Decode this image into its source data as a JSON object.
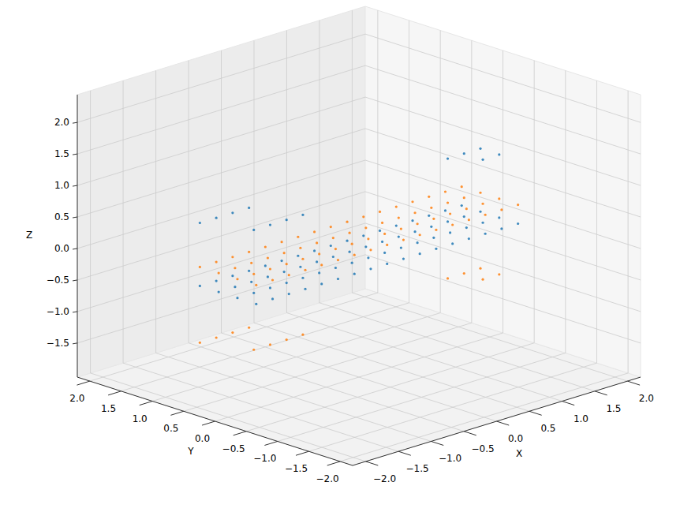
{
  "chart_data": {
    "type": "scatter3d",
    "x_label": "X",
    "y_label": "Y",
    "z_label": "Z",
    "xlim": [
      -2.2,
      2.2
    ],
    "ylim": [
      -2.2,
      2.2
    ],
    "zlim": [
      -2.04,
      2.44
    ],
    "xticks": [
      {
        "value": -2,
        "label": "−2.0"
      },
      {
        "value": -1.5,
        "label": "−1.5"
      },
      {
        "value": -1,
        "label": "−1.0"
      },
      {
        "value": -0.5,
        "label": "−0.5"
      },
      {
        "value": 0,
        "label": "0.0"
      },
      {
        "value": 0.5,
        "label": "0.5"
      },
      {
        "value": 1,
        "label": "1.0"
      },
      {
        "value": 1.5,
        "label": "1.5"
      },
      {
        "value": 2,
        "label": "2.0"
      }
    ],
    "yticks": [
      {
        "value": -2,
        "label": "−2.0"
      },
      {
        "value": -1.5,
        "label": "−1.5"
      },
      {
        "value": -1,
        "label": "−1.0"
      },
      {
        "value": -0.5,
        "label": "−0.5"
      },
      {
        "value": 0,
        "label": "0.0"
      },
      {
        "value": 0.5,
        "label": "0.5"
      },
      {
        "value": 1,
        "label": "1.0"
      },
      {
        "value": 1.5,
        "label": "1.5"
      },
      {
        "value": 2,
        "label": "2.0"
      }
    ],
    "zticks": [
      {
        "value": -1.5,
        "label": "−1.5"
      },
      {
        "value": -1,
        "label": "−1.0"
      },
      {
        "value": -0.5,
        "label": "−0.5"
      },
      {
        "value": 0,
        "label": "0.0"
      },
      {
        "value": 0.5,
        "label": "0.5"
      },
      {
        "value": 1,
        "label": "1.0"
      },
      {
        "value": 1.5,
        "label": "1.5"
      },
      {
        "value": 2,
        "label": "2.0"
      }
    ],
    "grid": true,
    "series": [
      {
        "color": "#1f77b4",
        "x": [
          -2,
          -1.75,
          -1.5,
          -1.25,
          -1,
          -0.75,
          -0.5,
          -0.25,
          0,
          0.25,
          0.5,
          0.75,
          1,
          1.25,
          1.5,
          1.75,
          2,
          -2,
          -1.75,
          -1.5,
          -1.25,
          -1,
          -0.75,
          -0.5,
          -0.25,
          0,
          0.25,
          0.5,
          0.75,
          1,
          1.25,
          1.5,
          1.75,
          2,
          -2,
          -1.75,
          -1.5,
          -1.25,
          -1,
          -0.75,
          -0.5,
          -0.25,
          0,
          0.25,
          0.5,
          0.75,
          1,
          1.25,
          1.5,
          1.75,
          2,
          -2,
          -1.75,
          -1.5,
          -1.25,
          -1,
          -0.75,
          -0.5,
          -0.25,
          0,
          0.25,
          0.5,
          0.75,
          1,
          1.25,
          1.5,
          1.75,
          2,
          -2,
          -1.75,
          -1.5,
          -1.25,
          -1.75,
          -1.5,
          -1.25,
          -1,
          1.5,
          1.75,
          2,
          1.75,
          2
        ],
        "y": [
          -0.45,
          -0.45,
          -0.45,
          -0.45,
          -0.45,
          -0.45,
          -0.45,
          -0.45,
          -0.45,
          -0.45,
          -0.45,
          -0.45,
          -0.45,
          -0.45,
          -0.45,
          -0.45,
          -0.45,
          -0.15,
          -0.15,
          -0.15,
          -0.15,
          -0.15,
          -0.15,
          -0.15,
          -0.15,
          -0.15,
          -0.15,
          -0.15,
          -0.15,
          -0.15,
          -0.15,
          -0.15,
          -0.15,
          -0.15,
          0.15,
          0.15,
          0.15,
          0.15,
          0.15,
          0.15,
          0.15,
          0.15,
          0.15,
          0.15,
          0.15,
          0.15,
          0.15,
          0.15,
          0.15,
          0.15,
          0.15,
          0.45,
          0.45,
          0.45,
          0.45,
          0.45,
          0.45,
          0.45,
          0.45,
          0.45,
          0.45,
          0.45,
          0.45,
          0.45,
          0.45,
          0.45,
          0.45,
          0.45,
          0.45,
          0.45,
          0.45,
          0.45,
          -0.15,
          -0.15,
          -0.15,
          -0.15,
          0.15,
          0.15,
          0.15,
          -0.15,
          -0.15
        ],
        "z": [
          -0.1,
          -0.1,
          -0.1,
          -0.1,
          -0.1,
          -0.1,
          -0.1,
          -0.1,
          -0.1,
          -0.1,
          -0.1,
          -0.1,
          -0.1,
          -0.1,
          -0.1,
          -0.1,
          -0.1,
          -0.1,
          -0.1,
          -0.1,
          -0.1,
          -0.1,
          -0.1,
          -0.1,
          -0.1,
          -0.1,
          -0.1,
          -0.1,
          -0.1,
          -0.1,
          -0.1,
          -0.1,
          -0.1,
          -0.1,
          -0.1,
          -0.1,
          -0.1,
          -0.1,
          -0.1,
          -0.1,
          -0.1,
          -0.1,
          -0.1,
          -0.1,
          -0.1,
          -0.1,
          -0.1,
          -0.1,
          -0.1,
          -0.1,
          -0.1,
          -0.1,
          -0.1,
          -0.1,
          -0.1,
          -0.1,
          -0.1,
          -0.1,
          -0.1,
          -0.1,
          -0.1,
          -0.1,
          -0.1,
          -0.1,
          -0.1,
          -0.1,
          -0.1,
          -0.1,
          0.9,
          0.9,
          0.9,
          0.9,
          0.9,
          0.9,
          0.9,
          0.9,
          0.9,
          0.9,
          0.9,
          0.9,
          0.9
        ]
      },
      {
        "color": "#ff7f0e",
        "x": [
          -2,
          -1.75,
          -1.5,
          -1.25,
          -1,
          -0.75,
          -0.5,
          -0.25,
          0,
          0.25,
          0.5,
          0.75,
          1,
          1.25,
          1.5,
          1.75,
          2,
          -2,
          -1.75,
          -1.5,
          -1.25,
          -1,
          -0.75,
          -0.5,
          -0.25,
          0,
          0.25,
          0.5,
          0.75,
          1,
          1.25,
          1.5,
          1.75,
          2,
          -2,
          -1.75,
          -1.5,
          -1.25,
          -1,
          -0.75,
          -0.5,
          -0.25,
          0,
          0.25,
          0.5,
          0.75,
          1,
          1.25,
          1.5,
          1.75,
          2,
          -2,
          -1.75,
          -1.5,
          -1.25,
          -1,
          -0.75,
          -0.5,
          -0.25,
          0,
          0.25,
          0.5,
          0.75,
          1,
          1.25,
          1.5,
          1.75,
          2,
          -2,
          -1.75,
          -1.5,
          -1.25,
          -1.75,
          -1.5,
          -1.25,
          -1,
          1.5,
          1.75,
          2,
          1.75,
          2
        ],
        "y": [
          -0.45,
          -0.45,
          -0.45,
          -0.45,
          -0.45,
          -0.45,
          -0.45,
          -0.45,
          -0.45,
          -0.45,
          -0.45,
          -0.45,
          -0.45,
          -0.45,
          -0.45,
          -0.45,
          -0.45,
          -0.15,
          -0.15,
          -0.15,
          -0.15,
          -0.15,
          -0.15,
          -0.15,
          -0.15,
          -0.15,
          -0.15,
          -0.15,
          -0.15,
          -0.15,
          -0.15,
          -0.15,
          -0.15,
          -0.15,
          0.15,
          0.15,
          0.15,
          0.15,
          0.15,
          0.15,
          0.15,
          0.15,
          0.15,
          0.15,
          0.15,
          0.15,
          0.15,
          0.15,
          0.15,
          0.15,
          0.15,
          0.45,
          0.45,
          0.45,
          0.45,
          0.45,
          0.45,
          0.45,
          0.45,
          0.45,
          0.45,
          0.45,
          0.45,
          0.45,
          0.45,
          0.45,
          0.45,
          0.45,
          0.45,
          0.45,
          0.45,
          0.45,
          -0.15,
          -0.15,
          -0.15,
          -0.15,
          0.15,
          0.15,
          0.15,
          -0.15,
          -0.15
        ],
        "z": [
          0.2,
          0.2,
          0.2,
          0.2,
          0.2,
          0.2,
          0.2,
          0.2,
          0.2,
          0.2,
          0.2,
          0.2,
          0.2,
          0.2,
          0.2,
          0.2,
          0.2,
          0.2,
          0.2,
          0.2,
          0.2,
          0.2,
          0.2,
          0.2,
          0.2,
          0.2,
          0.2,
          0.2,
          0.2,
          0.2,
          0.2,
          0.2,
          0.2,
          0.2,
          0.2,
          0.2,
          0.2,
          0.2,
          0.2,
          0.2,
          0.2,
          0.2,
          0.2,
          0.2,
          0.2,
          0.2,
          0.2,
          0.2,
          0.2,
          0.2,
          0.2,
          0.2,
          0.2,
          0.2,
          0.2,
          0.2,
          0.2,
          0.2,
          0.2,
          0.2,
          0.2,
          0.2,
          0.2,
          0.2,
          0.2,
          0.2,
          0.2,
          0.2,
          -1,
          -1,
          -1,
          -1,
          -1,
          -1,
          -1,
          -1,
          -1,
          -1,
          -1,
          -1,
          -1
        ]
      }
    ]
  }
}
